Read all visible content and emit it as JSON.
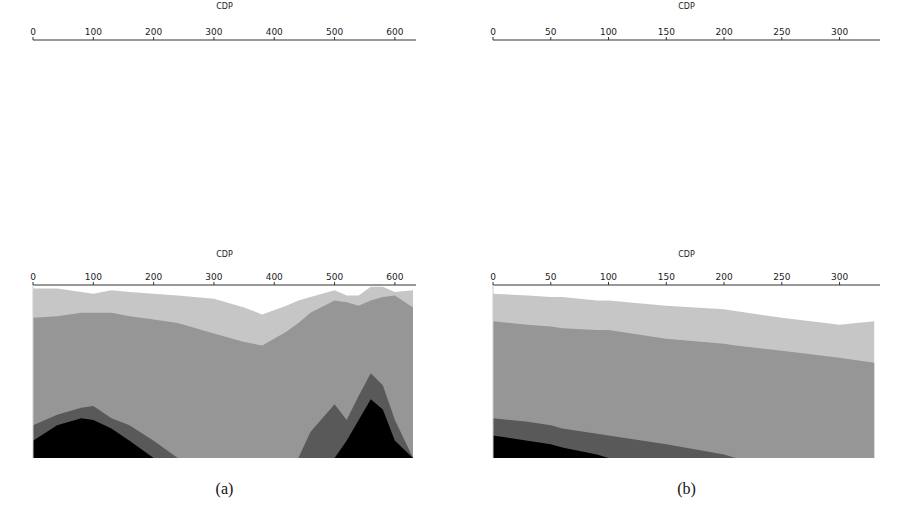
{
  "chart_data": [
    {
      "type": "image",
      "xlabel": "CDP",
      "xlim": [
        0,
        635
      ],
      "xticks": [
        0,
        100,
        200,
        300,
        400,
        500,
        600
      ],
      "tick_labels": "x"
    },
    {
      "type": "area",
      "xlabel": "CDP",
      "caption": "(a)",
      "xlim": [
        0,
        635
      ],
      "xticks": [
        0,
        100,
        200,
        300,
        400,
        500,
        600
      ],
      "ylim": [
        0,
        100
      ],
      "tick_labels": "x",
      "x": [
        0,
        40,
        80,
        100,
        130,
        160,
        200,
        240,
        300,
        350,
        380,
        420,
        440,
        460,
        500,
        520,
        540,
        560,
        580,
        600,
        630
      ],
      "series": [
        {
          "color": "#c6c6c6",
          "values": [
            98,
            98,
            96,
            95,
            97,
            96,
            95,
            94,
            92,
            87,
            83,
            88,
            91,
            93,
            97,
            94,
            94,
            99,
            99,
            96,
            97
          ]
        },
        {
          "color": "#969696",
          "values": [
            81,
            82,
            84,
            84,
            84,
            82,
            80,
            78,
            72,
            67,
            65,
            73,
            78,
            84,
            91,
            90,
            88,
            91,
            93,
            94,
            87
          ]
        },
        {
          "color": "#595959",
          "values": [
            19,
            25,
            29,
            30,
            23,
            19,
            10,
            0,
            0,
            0,
            0,
            0,
            0,
            15,
            31,
            22,
            36,
            49,
            42,
            22,
            0
          ]
        },
        {
          "color": "#000000",
          "values": [
            10,
            19,
            23,
            22,
            17,
            10,
            0,
            0,
            0,
            0,
            0,
            0,
            0,
            0,
            0,
            10,
            22,
            34,
            28,
            10,
            0
          ]
        }
      ]
    },
    {
      "type": "image",
      "xlabel": "CDP",
      "xlim": [
        0,
        335
      ],
      "xticks": [
        0,
        50,
        100,
        150,
        200,
        250,
        300
      ],
      "tick_labels": "x"
    },
    {
      "type": "area",
      "xlabel": "CDP",
      "caption": "(b)",
      "xlim": [
        0,
        335
      ],
      "xticks": [
        0,
        50,
        100,
        150,
        200,
        250,
        300
      ],
      "ylim": [
        0,
        100
      ],
      "tick_labels": "x",
      "x": [
        0,
        30,
        50,
        60,
        90,
        100,
        150,
        200,
        210,
        250,
        300,
        330
      ],
      "series": [
        {
          "color": "#c6c6c6",
          "values": [
            95,
            94,
            93,
            93,
            91,
            91,
            88,
            86,
            85,
            81,
            77,
            79
          ]
        },
        {
          "color": "#969696",
          "values": [
            79,
            77,
            76,
            75,
            74,
            74,
            69,
            66,
            65,
            62,
            58,
            55
          ]
        },
        {
          "color": "#595959",
          "values": [
            23,
            21,
            19,
            17,
            14,
            13,
            8,
            2,
            0,
            0,
            0,
            0
          ]
        },
        {
          "color": "#000000",
          "values": [
            13,
            10,
            8,
            6,
            2,
            0,
            0,
            0,
            0,
            0,
            0,
            0
          ]
        }
      ]
    }
  ]
}
